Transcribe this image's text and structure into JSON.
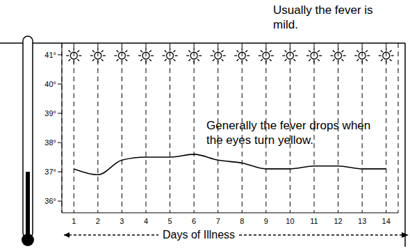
{
  "chart_data": {
    "type": "line",
    "title": "Usually the fever is mild.",
    "annotations": [
      "Generally the fever drops when the eyes turn yellow."
    ],
    "xlabel": "Days of Illness",
    "x": [
      1,
      2,
      3,
      4,
      5,
      6,
      7,
      8,
      9,
      10,
      11,
      12,
      13,
      14
    ],
    "values": [
      37.1,
      36.9,
      37.4,
      37.5,
      37.5,
      37.6,
      37.4,
      37.3,
      37.1,
      37.1,
      37.2,
      37.2,
      37.1,
      37.1
    ],
    "color": "#000000",
    "xlim": [
      0.5,
      14.5
    ],
    "xticks": [
      1,
      2,
      3,
      4,
      5,
      6,
      7,
      8,
      9,
      10,
      11,
      12,
      13,
      14
    ],
    "ylim": [
      35.6,
      41.4
    ],
    "yticks": [
      {
        "value": 36,
        "label": "36°"
      },
      {
        "value": 37,
        "label": "37°"
      },
      {
        "value": 38,
        "label": "38°"
      },
      {
        "value": 39,
        "label": "39°"
      },
      {
        "value": 40,
        "label": "40°"
      },
      {
        "value": 41,
        "label": "41°"
      }
    ],
    "grid": true
  }
}
